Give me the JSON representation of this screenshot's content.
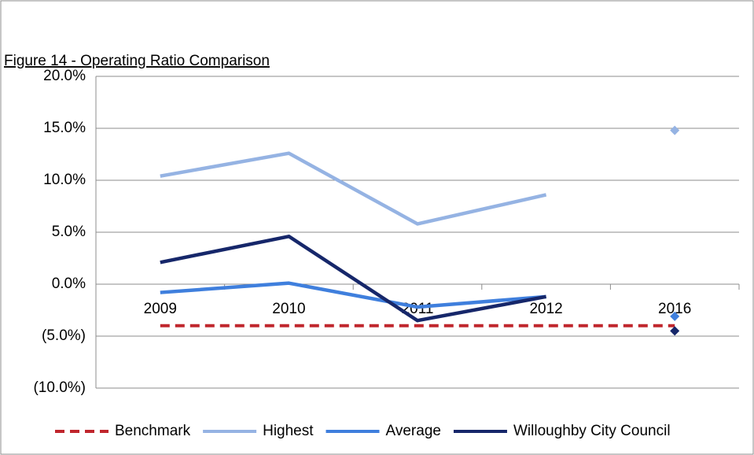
{
  "chart_data": {
    "type": "line",
    "title": "Figure 14 - Operating Ratio Comparison",
    "categories": [
      "2009",
      "2010",
      "2011",
      "2012",
      "2016"
    ],
    "ylim": [
      -10,
      20
    ],
    "yticks": [
      {
        "value": 20,
        "label": "20.0%"
      },
      {
        "value": 15,
        "label": "15.0%"
      },
      {
        "value": 10,
        "label": "10.0%"
      },
      {
        "value": 5,
        "label": "5.0%"
      },
      {
        "value": 0,
        "label": "0.0%"
      },
      {
        "value": -5,
        "label": "(5.0%)"
      },
      {
        "value": -10,
        "label": "(10.0%)"
      }
    ],
    "grid": true,
    "legend": "bottom",
    "series": [
      {
        "name": "Benchmark",
        "color": "#c0262d",
        "dashed": true,
        "connect_last": true,
        "values": [
          -4,
          -4,
          -4,
          -4,
          -4
        ]
      },
      {
        "name": "Highest",
        "color": "#95b3e3",
        "dashed": false,
        "connect_last": false,
        "values": [
          10.4,
          12.6,
          5.8,
          8.6,
          14.8
        ]
      },
      {
        "name": "Average",
        "color": "#3f7fdd",
        "dashed": false,
        "connect_last": false,
        "values": [
          -0.8,
          0.1,
          -2.2,
          -1.2,
          -3.1
        ]
      },
      {
        "name": "Willoughby City Council",
        "color": "#16276a",
        "dashed": false,
        "connect_last": false,
        "values": [
          2.1,
          4.6,
          -3.5,
          -1.2,
          -4.5
        ]
      }
    ]
  }
}
